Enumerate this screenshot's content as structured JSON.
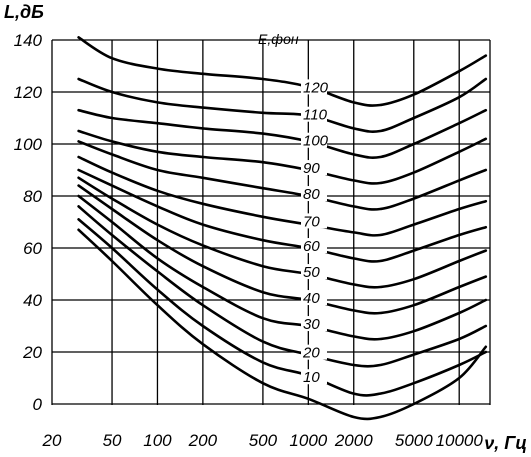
{
  "chart_data": {
    "type": "line",
    "title": "",
    "ylabel": "L,дБ",
    "xlabel": "ν, Гц",
    "legend_title": "E,фон",
    "x_scale": "log",
    "xlim": [
      20,
      16000
    ],
    "ylim": [
      -10,
      145
    ],
    "grid": true,
    "x_ticks": [
      {
        "value": 20,
        "label": "20"
      },
      {
        "value": 50,
        "label": "50"
      },
      {
        "value": 100,
        "label": "100"
      },
      {
        "value": 200,
        "label": "200"
      },
      {
        "value": 500,
        "label": "500"
      },
      {
        "value": 1000,
        "label": "1000"
      },
      {
        "value": 2000,
        "label": "2000"
      },
      {
        "value": 5000,
        "label": "5000"
      },
      {
        "value": 10000,
        "label": "10000"
      }
    ],
    "y_ticks": [
      {
        "value": 0,
        "label": "0"
      },
      {
        "value": 20,
        "label": "20"
      },
      {
        "value": 40,
        "label": "40"
      },
      {
        "value": 60,
        "label": "60"
      },
      {
        "value": 80,
        "label": "80"
      },
      {
        "value": 100,
        "label": "100"
      },
      {
        "value": 120,
        "label": "120"
      },
      {
        "value": 140,
        "label": "140"
      }
    ],
    "x": [
      30,
      50,
      100,
      200,
      500,
      1000,
      2000,
      3000,
      5000,
      10000,
      15000
    ],
    "series": [
      {
        "name": "120",
        "values": [
          141,
          133,
          129,
          127,
          125,
          122,
          116,
          115,
          119,
          128,
          134
        ]
      },
      {
        "name": "110",
        "values": [
          125,
          120,
          116,
          114,
          112,
          111,
          106,
          105,
          110,
          118,
          125
        ]
      },
      {
        "name": "100",
        "values": [
          113,
          110,
          108,
          106,
          104,
          101,
          96,
          95,
          100,
          108,
          113
        ]
      },
      {
        "name": "90",
        "values": [
          105,
          101,
          97,
          95,
          93,
          90,
          86,
          85,
          89,
          97,
          102
        ]
      },
      {
        "name": "80",
        "values": [
          101,
          96,
          90,
          87,
          83,
          80,
          76,
          75,
          79,
          86,
          90
        ]
      },
      {
        "name": "70",
        "values": [
          95,
          89,
          82,
          77,
          72,
          69,
          66,
          65,
          69,
          75,
          78
        ]
      },
      {
        "name": "60",
        "values": [
          90,
          84,
          76,
          69,
          63,
          60,
          56,
          55,
          59,
          65,
          68
        ]
      },
      {
        "name": "50",
        "values": [
          87,
          79,
          69,
          61,
          53,
          50,
          46,
          45,
          48,
          55,
          59
        ]
      },
      {
        "name": "40",
        "values": [
          84,
          75,
          63,
          53,
          43,
          40,
          36,
          35,
          38,
          45,
          49
        ]
      },
      {
        "name": "30",
        "values": [
          80,
          70,
          56,
          45,
          33,
          30,
          26,
          25,
          28,
          35,
          40
        ]
      },
      {
        "name": "20",
        "values": [
          76,
          65,
          51,
          38,
          24,
          19,
          15,
          15,
          19,
          25,
          30
        ]
      },
      {
        "name": "10",
        "values": [
          71,
          60,
          44,
          30,
          16,
          11,
          4,
          4,
          8,
          15,
          20
        ]
      },
      {
        "name": "",
        "values": [
          67,
          55,
          38,
          23,
          8,
          2,
          -5,
          -5,
          0,
          10,
          22
        ]
      }
    ]
  }
}
